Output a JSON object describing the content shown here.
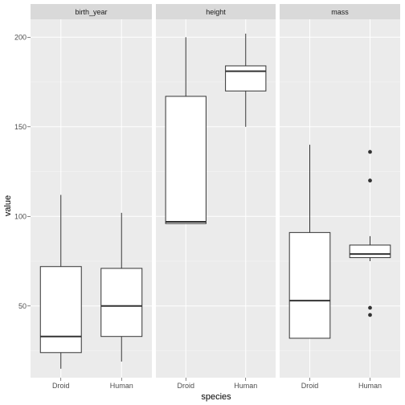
{
  "chart_data": {
    "type": "boxplot",
    "xlabel": "species",
    "ylabel": "value",
    "ylim": [
      10,
      210
    ],
    "y_ticks": [
      50,
      100,
      150,
      200
    ],
    "categories": [
      "Droid",
      "Human"
    ],
    "facets": [
      {
        "name": "birth_year",
        "boxes": [
          {
            "category": "Droid",
            "min": 15,
            "q1": 24,
            "median": 33,
            "q3": 72,
            "max": 112,
            "outliers": []
          },
          {
            "category": "Human",
            "min": 19,
            "q1": 33,
            "median": 50,
            "q3": 71,
            "max": 102,
            "outliers": []
          }
        ]
      },
      {
        "name": "height",
        "boxes": [
          {
            "category": "Droid",
            "min": 96,
            "q1": 96,
            "median": 97,
            "q3": 167,
            "max": 200,
            "outliers": []
          },
          {
            "category": "Human",
            "min": 150,
            "q1": 170,
            "median": 181,
            "q3": 184,
            "max": 202,
            "outliers": []
          }
        ]
      },
      {
        "name": "mass",
        "boxes": [
          {
            "category": "Droid",
            "min": 32,
            "q1": 32,
            "median": 53,
            "q3": 91,
            "max": 140,
            "outliers": []
          },
          {
            "category": "Human",
            "min": 75,
            "q1": 77,
            "median": 79,
            "q3": 84,
            "max": 89,
            "outliers": [
              45,
              49,
              120,
              136
            ]
          }
        ]
      }
    ],
    "grid": true,
    "colors": {
      "panel_bg": "#ebebeb",
      "grid_major": "#ffffff",
      "strip_bg": "#d9d9d9",
      "box_fill": "#ffffff",
      "box_stroke": "#333333"
    }
  }
}
